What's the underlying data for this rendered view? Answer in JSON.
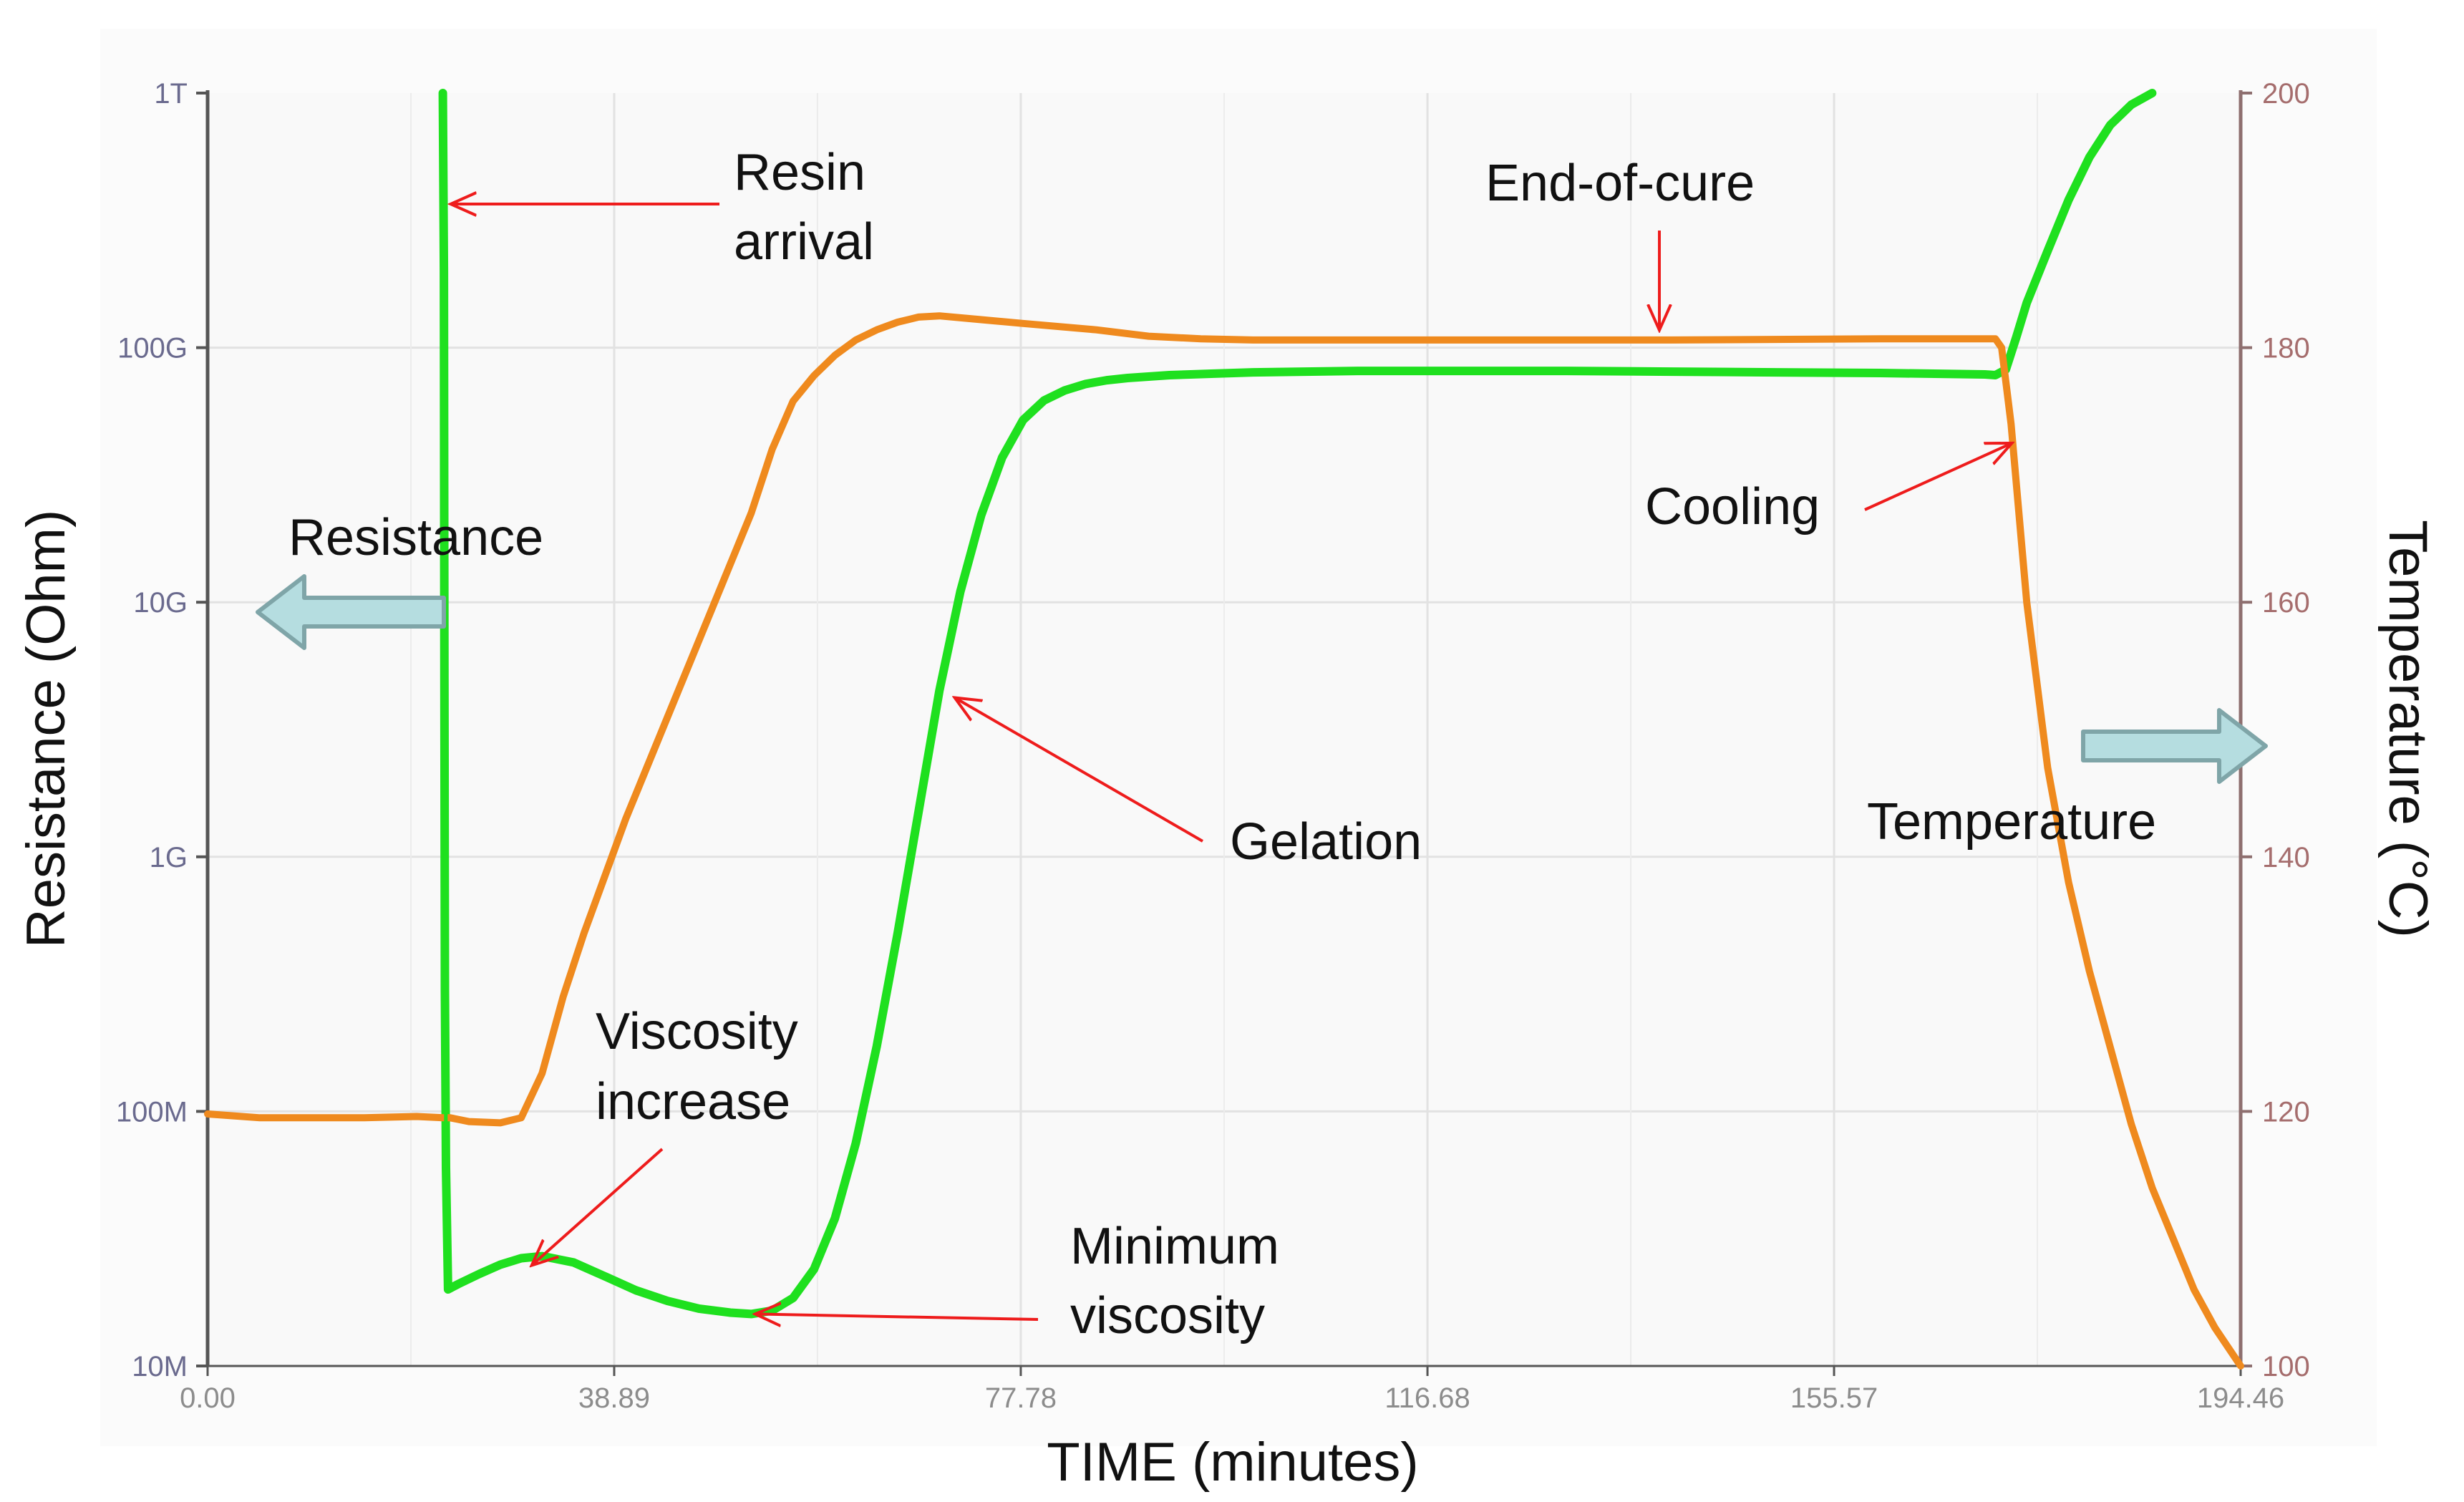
{
  "chart_data": {
    "type": "line",
    "title": "",
    "xlabel": "TIME (minutes)",
    "ylabel": "Resistance (Ohm)",
    "y2label": "Temperature (°C)",
    "xlim": [
      0,
      194.46
    ],
    "ylim": [
      10000000,
      1000000000000
    ],
    "y_scale": "log",
    "y2lim": [
      100,
      200
    ],
    "x_ticks": [
      0,
      38.89,
      77.78,
      116.68,
      155.57,
      194.46
    ],
    "x_tick_labels": [
      "0.00",
      "38.89",
      "77.78",
      "116.68",
      "155.57",
      "194.46"
    ],
    "y_ticks": [
      10000000,
      100000000,
      1000000000,
      10000000000,
      100000000000,
      1000000000000
    ],
    "y_tick_labels": [
      "10M",
      "100M",
      "1G",
      "10G",
      "100G",
      "1T"
    ],
    "y2_ticks": [
      100,
      120,
      140,
      160,
      180,
      200
    ],
    "y2_tick_labels": [
      "100",
      "120",
      "140",
      "160",
      "180",
      "200"
    ],
    "grid": true,
    "series": [
      {
        "name": "Resistance",
        "axis": "left",
        "color": "#1fe01f",
        "x": [
          22.5,
          22.6,
          22.65,
          22.7,
          22.8,
          23.0,
          24,
          26,
          28,
          30,
          32,
          35,
          38,
          41,
          44,
          47,
          50,
          52,
          54,
          56,
          58,
          60,
          62,
          64,
          66,
          68,
          70,
          72,
          74,
          76,
          78,
          80,
          82,
          84,
          86,
          88,
          90,
          92,
          94,
          96,
          100,
          110,
          120,
          130,
          140,
          150,
          160,
          170,
          171,
          172,
          173,
          174,
          176,
          178,
          180,
          182,
          184,
          186
        ],
        "y": [
          1000000000000,
          200000000000,
          5000000000,
          300000000,
          60000000,
          20000000,
          21000000,
          23000000,
          25000000,
          26500000,
          27000000,
          25500000,
          22500000,
          19800000,
          18000000,
          16800000,
          16200000,
          16000000,
          16500000,
          18500000,
          24000000,
          38000000,
          75000000,
          180000000,
          500000000,
          1500000000,
          4500000000,
          11000000000,
          22000000000,
          37000000000,
          52000000000,
          62000000000,
          68000000000,
          72000000000,
          74500000000,
          76000000000,
          77000000000,
          78000000000,
          78500000000,
          79000000000,
          80000000000,
          81000000000,
          81000000000,
          81000000000,
          80500000000,
          80000000000,
          79500000000,
          78500000000,
          78000000000,
          82000000000,
          110000000000,
          150000000000,
          240000000000,
          380000000000,
          560000000000,
          750000000000,
          900000000000,
          1000000000000
        ]
      },
      {
        "name": "Temperature",
        "axis": "right",
        "color": "#ef8a1e",
        "x": [
          0,
          5,
          10,
          15,
          20,
          22.5,
          23.2,
          25,
          28,
          30,
          32,
          34,
          36,
          40,
          44,
          48,
          50,
          52,
          54,
          56,
          58,
          60,
          62,
          64,
          66,
          68,
          70,
          74,
          78,
          85,
          90,
          95,
          100,
          120,
          140,
          160,
          171,
          171.6,
          172.5,
          174,
          176,
          178,
          180,
          182,
          184,
          186,
          188,
          190,
          192,
          194.46
        ],
        "y": [
          119.8,
          119.5,
          119.5,
          119.5,
          119.6,
          119.5,
          119.5,
          119.2,
          119.1,
          119.5,
          123,
          129,
          134,
          143,
          151,
          159,
          163,
          167,
          172,
          175.8,
          177.8,
          179.4,
          180.6,
          181.4,
          182,
          182.4,
          182.5,
          182.2,
          181.9,
          181.4,
          180.9,
          180.7,
          180.6,
          180.6,
          180.6,
          180.7,
          180.7,
          180,
          174,
          160,
          147,
          138,
          131,
          125,
          119,
          114,
          110,
          106,
          103,
          100
        ]
      }
    ],
    "annotations": {
      "resin_arrival_line1": "Resin",
      "resin_arrival_line2": "arrival",
      "end_of_cure": "End-of-cure",
      "resistance": "Resistance",
      "cooling": "Cooling",
      "viscosity_increase_line1": "Viscosity",
      "viscosity_increase_line2": "increase",
      "gelation": "Gelation",
      "temperature": "Temperature",
      "minimum_viscosity_line1": "Minimum",
      "minimum_viscosity_line2": "viscosity"
    }
  },
  "colors": {
    "plot_background": "#f9f9f9",
    "grid": "#e2e2e2",
    "axis": "#555555",
    "left_tick_label": "#6a6a8e",
    "right_tick_label": "#a56d6d",
    "x_tick_label": "#8c8c8c",
    "annotation_arrow": "#ee1c1c",
    "big_arrow_fill": "#b5dde0",
    "big_arrow_stroke": "#7fa5a8"
  }
}
